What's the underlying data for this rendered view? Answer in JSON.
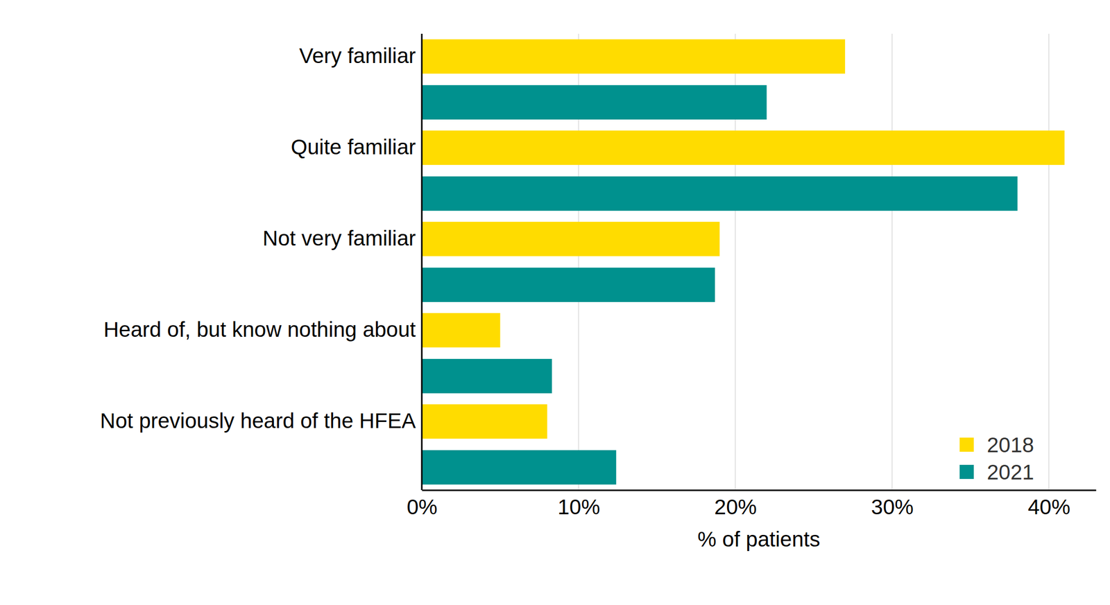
{
  "chart_data": {
    "type": "bar",
    "orientation": "horizontal",
    "categories": [
      "Very familiar",
      "Quite familiar",
      "Not very familiar",
      "Heard of, but know nothing about",
      "Not previously heard of the HFEA"
    ],
    "series": [
      {
        "name": "2018",
        "color": "#FFDC00",
        "values": [
          27,
          41,
          19,
          5,
          8
        ]
      },
      {
        "name": "2021",
        "color": "#00918E",
        "values": [
          22,
          38,
          18.7,
          8.3,
          12.4
        ]
      }
    ],
    "xlabel": "% of patients",
    "xlim": [
      0,
      43
    ],
    "xticks": [
      {
        "value": 0,
        "label": "0%"
      },
      {
        "value": 10,
        "label": "10%"
      },
      {
        "value": 20,
        "label": "20%"
      },
      {
        "value": 30,
        "label": "30%"
      },
      {
        "value": 40,
        "label": "40%"
      }
    ],
    "grid": true,
    "legend": "bottom-right"
  }
}
